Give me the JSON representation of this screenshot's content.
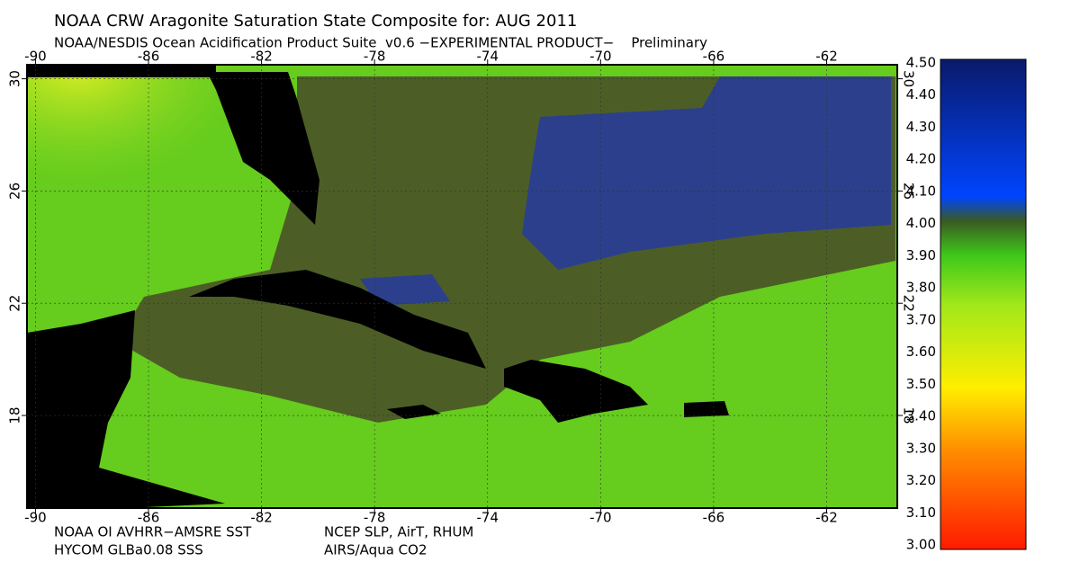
{
  "header": {
    "title": "NOAA CRW Aragonite Saturation State Composite for: AUG 2011",
    "subtitle": "NOAA/NESDIS Ocean Acidification Product Suite  v0.6 −EXPERIMENTAL PRODUCT−    Preliminary"
  },
  "map": {
    "lonlim": [
      -90.3,
      -59.5
    ],
    "latlim": [
      14.7,
      30.5
    ],
    "lon_ticks": [
      -90,
      -86,
      -82,
      -78,
      -74,
      -70,
      -66,
      -62
    ],
    "lat_ticks": [
      30,
      26,
      22,
      18
    ]
  },
  "colorbar": {
    "lim": [
      3.0,
      4.5
    ],
    "ticks": [
      {
        "value": 4.5,
        "label": "4.50"
      },
      {
        "value": 4.4,
        "label": "4.40"
      },
      {
        "value": 4.3,
        "label": "4.30"
      },
      {
        "value": 4.2,
        "label": "4.20"
      },
      {
        "value": 4.1,
        "label": "4.10"
      },
      {
        "value": 4.0,
        "label": "4.00"
      },
      {
        "value": 3.9,
        "label": "3.90"
      },
      {
        "value": 3.8,
        "label": "3.80"
      },
      {
        "value": 3.7,
        "label": "3.70"
      },
      {
        "value": 3.6,
        "label": "3.60"
      },
      {
        "value": 3.5,
        "label": "3.50"
      },
      {
        "value": 3.4,
        "label": "3.40"
      },
      {
        "value": 3.3,
        "label": "3.30"
      },
      {
        "value": 3.2,
        "label": "3.20"
      },
      {
        "value": 3.1,
        "label": "3.10"
      },
      {
        "value": 3.0,
        "label": "3.00"
      }
    ]
  },
  "footer": {
    "sources_left": [
      "NOAA OI AVHRR−AMSRE SST",
      "HYCOM GLBa0.08 SSS"
    ],
    "sources_right": [
      "NCEP SLP, AirT, RHUM",
      "AIRS/Aqua CO2"
    ]
  }
}
